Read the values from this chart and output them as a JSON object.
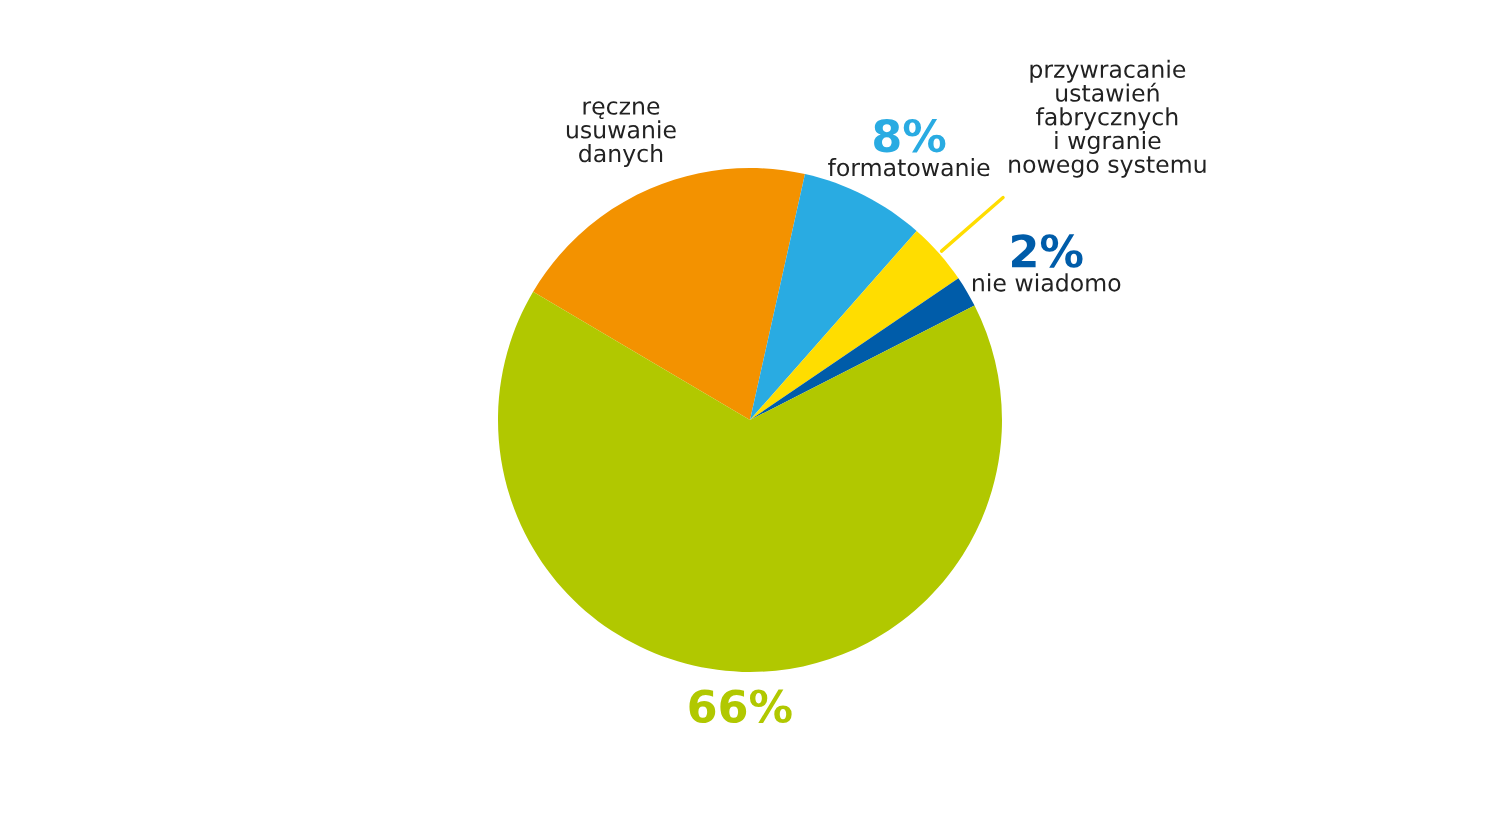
{
  "chart_data": {
    "type": "pie",
    "categories": [
      "ręczne\nusuwanie\ndanych",
      "formatowanie",
      "przywracanie\nustawień\nfabrycznych\ni wgranie\nnowego systemu",
      "nie wiadomo",
      null
    ],
    "values": [
      20,
      8,
      4,
      2,
      66
    ],
    "colors": [
      "#f39200",
      "#29abe2",
      "#ffdd00",
      "#005ca9",
      "#b1c800"
    ],
    "value_labels": [
      null,
      "8%",
      null,
      "2%",
      "66%"
    ]
  }
}
